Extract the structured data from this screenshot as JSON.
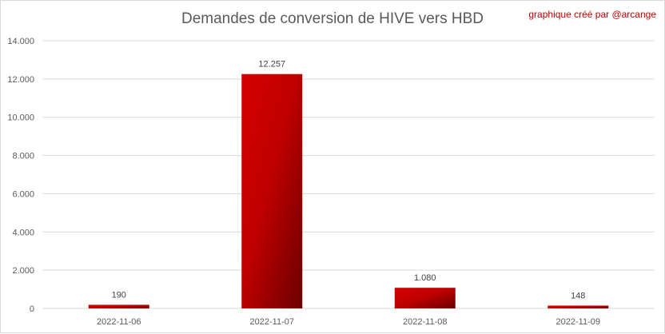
{
  "chart_data": {
    "type": "bar",
    "title": "Demandes de conversion de HIVE vers HBD",
    "annotation": "graphique créé par @arcange",
    "categories": [
      "2022-11-06",
      "2022-11-07",
      "2022-11-08",
      "2022-11-09"
    ],
    "values": [
      190,
      12257,
      1080,
      148
    ],
    "value_labels": [
      "190",
      "12.257",
      "1.080",
      "148"
    ],
    "yticks": [
      0,
      2000,
      4000,
      6000,
      8000,
      10000,
      12000,
      14000
    ],
    "ytick_labels": [
      "0",
      "2.000",
      "4.000",
      "6.000",
      "8.000",
      "10.000",
      "12.000",
      "14.000"
    ],
    "ylim": [
      0,
      14000
    ],
    "grid": true,
    "legend": "none",
    "colors": {
      "bar_light": "#d60000",
      "bar_dark": "#6b0000",
      "grid": "#d9d9d9"
    }
  }
}
